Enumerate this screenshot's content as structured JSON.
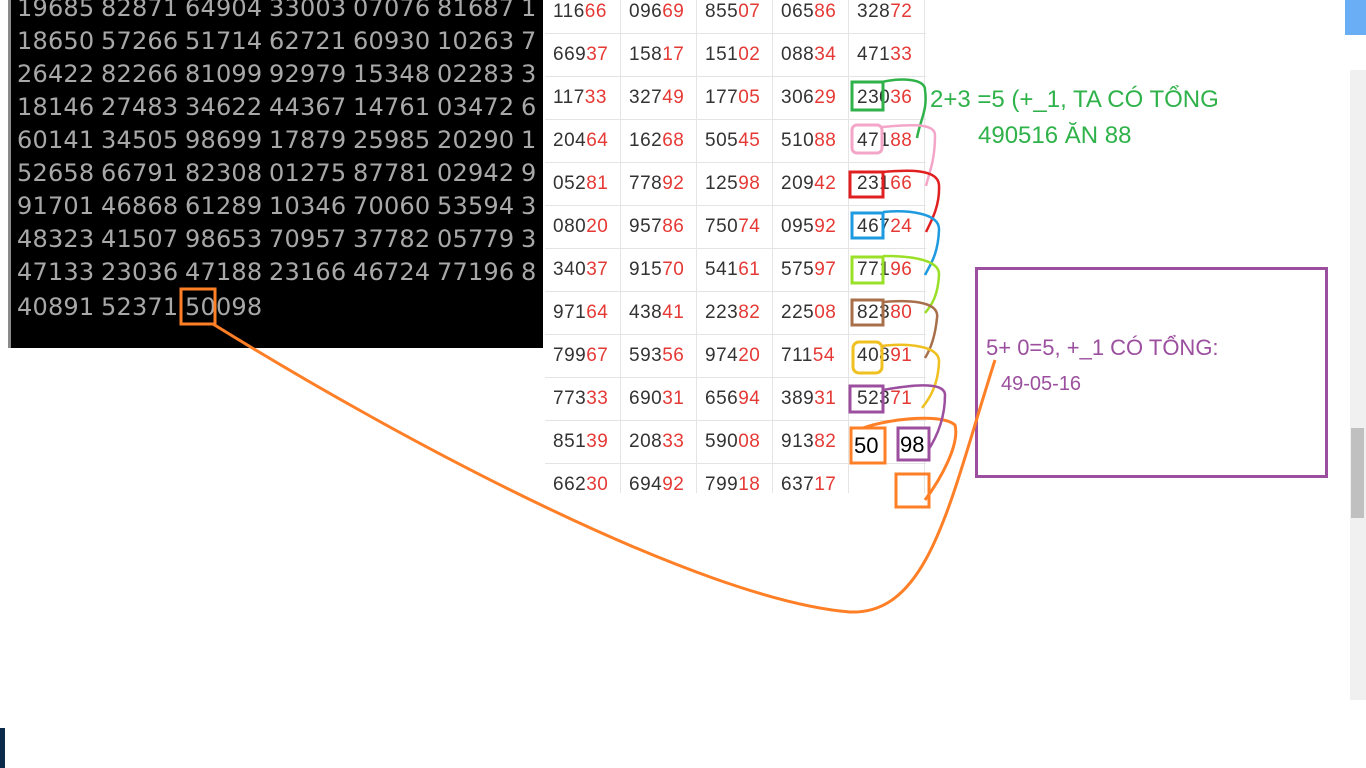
{
  "dark_panel": {
    "rows": [
      [
        "19685",
        "82871",
        "64904",
        "33003",
        "07076",
        "81687",
        "1"
      ],
      [
        "18650",
        "57266",
        "51714",
        "62721",
        "60930",
        "10263",
        "7"
      ],
      [
        "26422",
        "82266",
        "81099",
        "92979",
        "15348",
        "02283",
        "3"
      ],
      [
        "18146",
        "27483",
        "34622",
        "44367",
        "14761",
        "03472",
        "6"
      ],
      [
        "60141",
        "34505",
        "98699",
        "17879",
        "25985",
        "20290",
        "1"
      ],
      [
        "52658",
        "66791",
        "82308",
        "01275",
        "87781",
        "02942",
        "9"
      ],
      [
        "91701",
        "46868",
        "61289",
        "10346",
        "70060",
        "53594",
        "3"
      ],
      [
        "48323",
        "41507",
        "98653",
        "70957",
        "37782",
        "05779",
        "3"
      ],
      [
        "47133",
        "23036",
        "47188",
        "23166",
        "46724",
        "77196",
        "8"
      ],
      [
        "40891",
        "52371",
        "50098"
      ]
    ]
  },
  "table": {
    "rows": [
      [
        [
          "116",
          "66"
        ],
        [
          "096",
          "69"
        ],
        [
          "855",
          "07"
        ],
        [
          "065",
          "86"
        ],
        [
          "328",
          "72"
        ]
      ],
      [
        [
          "669",
          "37"
        ],
        [
          "158",
          "17"
        ],
        [
          "151",
          "02"
        ],
        [
          "088",
          "34"
        ],
        [
          "471",
          "33"
        ]
      ],
      [
        [
          "117",
          "33"
        ],
        [
          "327",
          "49"
        ],
        [
          "177",
          "05"
        ],
        [
          "306",
          "29"
        ],
        [
          "230",
          "36"
        ]
      ],
      [
        [
          "204",
          "64"
        ],
        [
          "162",
          "68"
        ],
        [
          "505",
          "45"
        ],
        [
          "510",
          "88"
        ],
        [
          "471",
          "88"
        ]
      ],
      [
        [
          "052",
          "81"
        ],
        [
          "778",
          "92"
        ],
        [
          "125",
          "98"
        ],
        [
          "209",
          "42"
        ],
        [
          "231",
          "66"
        ]
      ],
      [
        [
          "080",
          "20"
        ],
        [
          "957",
          "86"
        ],
        [
          "750",
          "74"
        ],
        [
          "095",
          "92"
        ],
        [
          "467",
          "24"
        ]
      ],
      [
        [
          "340",
          "37"
        ],
        [
          "915",
          "70"
        ],
        [
          "541",
          "61"
        ],
        [
          "575",
          "97"
        ],
        [
          "771",
          "96"
        ]
      ],
      [
        [
          "971",
          "64"
        ],
        [
          "438",
          "41"
        ],
        [
          "223",
          "82"
        ],
        [
          "225",
          "08"
        ],
        [
          "823",
          "80"
        ]
      ],
      [
        [
          "799",
          "67"
        ],
        [
          "593",
          "56"
        ],
        [
          "974",
          "20"
        ],
        [
          "711",
          "54"
        ],
        [
          "408",
          "91"
        ]
      ],
      [
        [
          "773",
          "33"
        ],
        [
          "690",
          "31"
        ],
        [
          "656",
          "94"
        ],
        [
          "389",
          "31"
        ],
        [
          "523",
          "71"
        ]
      ],
      [
        [
          "851",
          "39"
        ],
        [
          "208",
          "33"
        ],
        [
          "590",
          "08"
        ],
        [
          "913",
          "82"
        ],
        [
          "",
          ""
        ]
      ],
      [
        [
          "662",
          "30"
        ],
        [
          "694",
          "92"
        ],
        [
          "799",
          "18"
        ],
        [
          "637",
          "17"
        ],
        [
          "",
          ""
        ]
      ]
    ],
    "pending_pair": [
      "50",
      "98"
    ]
  },
  "annotations": {
    "green_line1": "2+3 =5 (+_1, TA CÓ TỔNG",
    "green_line2": "490516 ĂN 88",
    "purple_line1": "5+ 0=5, +_1 CÓ TỔNG:",
    "purple_line2": "49-05-16"
  },
  "colors": {
    "digit_gray": "#a8a8a8",
    "tail_red": "#e53935",
    "green": "#2fb24a",
    "purple": "#9b4f9e",
    "orange": "#ff7f27"
  }
}
